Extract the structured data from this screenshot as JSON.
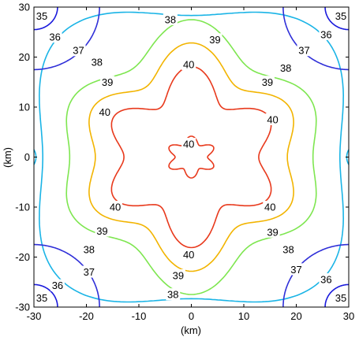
{
  "chart_data": {
    "type": "contour",
    "xlabel": "(km)",
    "ylabel": "(km)",
    "xlim": [
      -30,
      30
    ],
    "ylim": [
      -30,
      30
    ],
    "xticks": [
      -30,
      -20,
      -10,
      0,
      10,
      20,
      30
    ],
    "yticks": [
      -30,
      -20,
      -10,
      0,
      10,
      20,
      30
    ],
    "grid": false,
    "levels": [
      {
        "value": 35,
        "label": "35",
        "color": "#1a1adc"
      },
      {
        "value": 36,
        "label": "36",
        "color": "#2f2fd8"
      },
      {
        "value": 37,
        "label": "37",
        "color": "#1ab4e6"
      },
      {
        "value": 38,
        "label": "38",
        "color": "#7ee650"
      },
      {
        "value": 39,
        "label": "39",
        "color": "#f2b400"
      },
      {
        "value": 40,
        "label": "40",
        "color": "#e8391c"
      }
    ],
    "contour_labels": [
      {
        "text": "35",
        "x": -28.5,
        "y": 28.2
      },
      {
        "text": "35",
        "x": 28.5,
        "y": 28.2
      },
      {
        "text": "35",
        "x": -28.5,
        "y": -28.2
      },
      {
        "text": "35",
        "x": 28.5,
        "y": -28.2
      },
      {
        "text": "36",
        "x": -26.0,
        "y": 24.0
      },
      {
        "text": "36",
        "x": 25.7,
        "y": 24.5
      },
      {
        "text": "36",
        "x": -25.5,
        "y": -25.7
      },
      {
        "text": "36",
        "x": 25.7,
        "y": -24.5
      },
      {
        "text": "37",
        "x": -21.5,
        "y": 21.3
      },
      {
        "text": "37",
        "x": 21.5,
        "y": 21.3
      },
      {
        "text": "37",
        "x": -19.5,
        "y": -23.0
      },
      {
        "text": "37",
        "x": 20.0,
        "y": -22.5
      },
      {
        "text": "38",
        "x": -4.0,
        "y": 27.5
      },
      {
        "text": "38",
        "x": -18.0,
        "y": 19.0
      },
      {
        "text": "38",
        "x": 18.0,
        "y": 17.8
      },
      {
        "text": "38",
        "x": -19.5,
        "y": -18.5
      },
      {
        "text": "38",
        "x": 18.5,
        "y": -18.5
      },
      {
        "text": "38",
        "x": -3.5,
        "y": -27.5
      },
      {
        "text": "39",
        "x": 4.5,
        "y": 23.5
      },
      {
        "text": "39",
        "x": -16.0,
        "y": 15.0
      },
      {
        "text": "39",
        "x": 14.5,
        "y": 15.0
      },
      {
        "text": "39",
        "x": -17.0,
        "y": -14.8
      },
      {
        "text": "39",
        "x": 15.5,
        "y": -15.0
      },
      {
        "text": "39",
        "x": -2.5,
        "y": -23.7
      },
      {
        "text": "40",
        "x": -0.5,
        "y": 18.5
      },
      {
        "text": "40",
        "x": -16.5,
        "y": 9.0
      },
      {
        "text": "40",
        "x": 15.5,
        "y": 7.5
      },
      {
        "text": "40",
        "x": -0.5,
        "y": 2.6
      },
      {
        "text": "40",
        "x": -14.5,
        "y": -10.0
      },
      {
        "text": "40",
        "x": 15.0,
        "y": -10.0
      },
      {
        "text": "40",
        "x": -0.5,
        "y": -19.5
      }
    ]
  }
}
